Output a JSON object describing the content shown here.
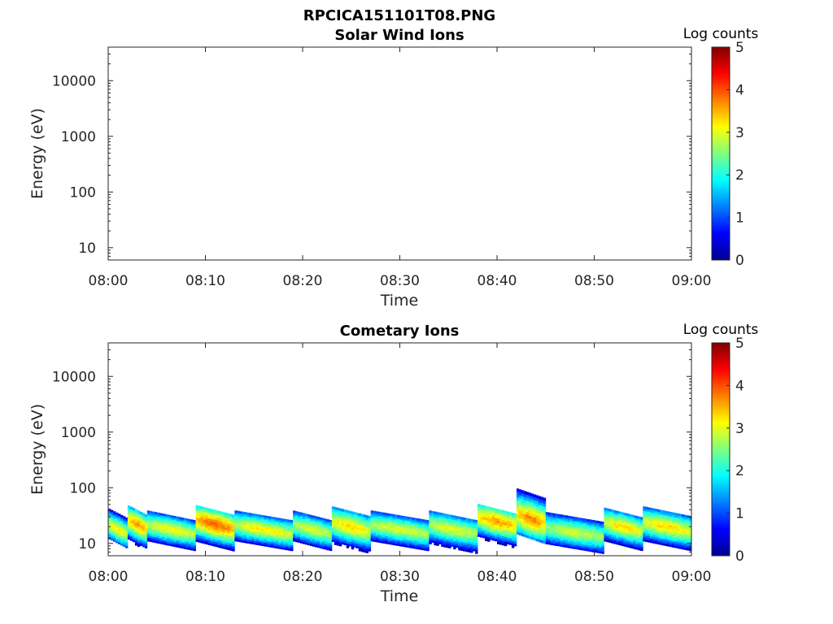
{
  "figure_title": "RPCICA151101T08.PNG",
  "colors": {
    "axis": "#262626",
    "background": "#ffffff"
  },
  "colormap": "jet",
  "chart_data": [
    {
      "type": "heatmap",
      "title": "Solar Wind Ions",
      "xlabel": "Time",
      "ylabel": "Energy (eV)",
      "yscale": "log",
      "ylim": [
        6,
        40000
      ],
      "xlim": [
        "08:00",
        "09:00"
      ],
      "xticks": [
        "08:00",
        "08:10",
        "08:20",
        "08:30",
        "08:40",
        "08:50",
        "09:00"
      ],
      "yticks": [
        10,
        100,
        1000,
        10000
      ],
      "ytick_labels": [
        "10",
        "100",
        "1000",
        "10000"
      ],
      "colorbar": {
        "label": "Log counts",
        "range": [
          0,
          5
        ],
        "ticks": [
          "0",
          "1",
          "2",
          "3",
          "4",
          "5"
        ]
      },
      "grid": false,
      "data_summary": "empty panel, no counts recorded",
      "bands": []
    },
    {
      "type": "heatmap",
      "title": "Cometary Ions",
      "xlabel": "Time",
      "ylabel": "Energy (eV)",
      "yscale": "log",
      "ylim": [
        6,
        40000
      ],
      "xlim": [
        "08:00",
        "09:00"
      ],
      "xticks": [
        "08:00",
        "08:10",
        "08:20",
        "08:30",
        "08:40",
        "08:50",
        "09:00"
      ],
      "yticks": [
        10,
        100,
        1000,
        10000
      ],
      "ytick_labels": [
        "10",
        "100",
        "1000",
        "10000"
      ],
      "colorbar": {
        "label": "Log counts",
        "range": [
          0,
          5
        ],
        "ticks": [
          "0",
          "1",
          "2",
          "3",
          "4",
          "5"
        ]
      },
      "grid": false,
      "data_summary": "low-energy ion band roughly 6-80 eV throughout the hour, peak log counts around 3.5-4 near 08:10 and 08:40",
      "bands": [
        {
          "t_start": "08:00",
          "t_end": "08:02",
          "e_low": 10,
          "e_high": 35,
          "e_peak": 18,
          "peak_log_counts": 3.2
        },
        {
          "t_start": "08:02",
          "t_end": "08:04",
          "e_low": 9,
          "e_high": 40,
          "e_peak": 22,
          "peak_log_counts": 3.6
        },
        {
          "t_start": "08:04",
          "t_end": "08:09",
          "e_low": 9,
          "e_high": 32,
          "e_peak": 18,
          "peak_log_counts": 3.1
        },
        {
          "t_start": "08:09",
          "t_end": "08:13",
          "e_low": 8,
          "e_high": 40,
          "e_peak": 22,
          "peak_log_counts": 3.9
        },
        {
          "t_start": "08:13",
          "t_end": "08:19",
          "e_low": 9,
          "e_high": 32,
          "e_peak": 18,
          "peak_log_counts": 3.2
        },
        {
          "t_start": "08:19",
          "t_end": "08:23",
          "e_low": 9,
          "e_high": 32,
          "e_peak": 18,
          "peak_log_counts": 3.0
        },
        {
          "t_start": "08:23",
          "t_end": "08:27",
          "e_low": 8,
          "e_high": 38,
          "e_peak": 20,
          "peak_log_counts": 3.3
        },
        {
          "t_start": "08:27",
          "t_end": "08:33",
          "e_low": 9,
          "e_high": 32,
          "e_peak": 18,
          "peak_log_counts": 3.0
        },
        {
          "t_start": "08:33",
          "t_end": "08:38",
          "e_low": 8,
          "e_high": 32,
          "e_peak": 18,
          "peak_log_counts": 3.0
        },
        {
          "t_start": "08:38",
          "t_end": "08:42",
          "e_low": 9,
          "e_high": 42,
          "e_peak": 25,
          "peak_log_counts": 3.6
        },
        {
          "t_start": "08:42",
          "t_end": "08:45",
          "e_low": 12,
          "e_high": 80,
          "e_peak": 28,
          "peak_log_counts": 3.7
        },
        {
          "t_start": "08:45",
          "t_end": "08:51",
          "e_low": 8,
          "e_high": 30,
          "e_peak": 16,
          "peak_log_counts": 2.9
        },
        {
          "t_start": "08:51",
          "t_end": "08:55",
          "e_low": 9,
          "e_high": 36,
          "e_peak": 20,
          "peak_log_counts": 3.3
        },
        {
          "t_start": "08:55",
          "t_end": "09:00",
          "e_low": 9,
          "e_high": 38,
          "e_peak": 20,
          "peak_log_counts": 3.3
        }
      ]
    }
  ]
}
